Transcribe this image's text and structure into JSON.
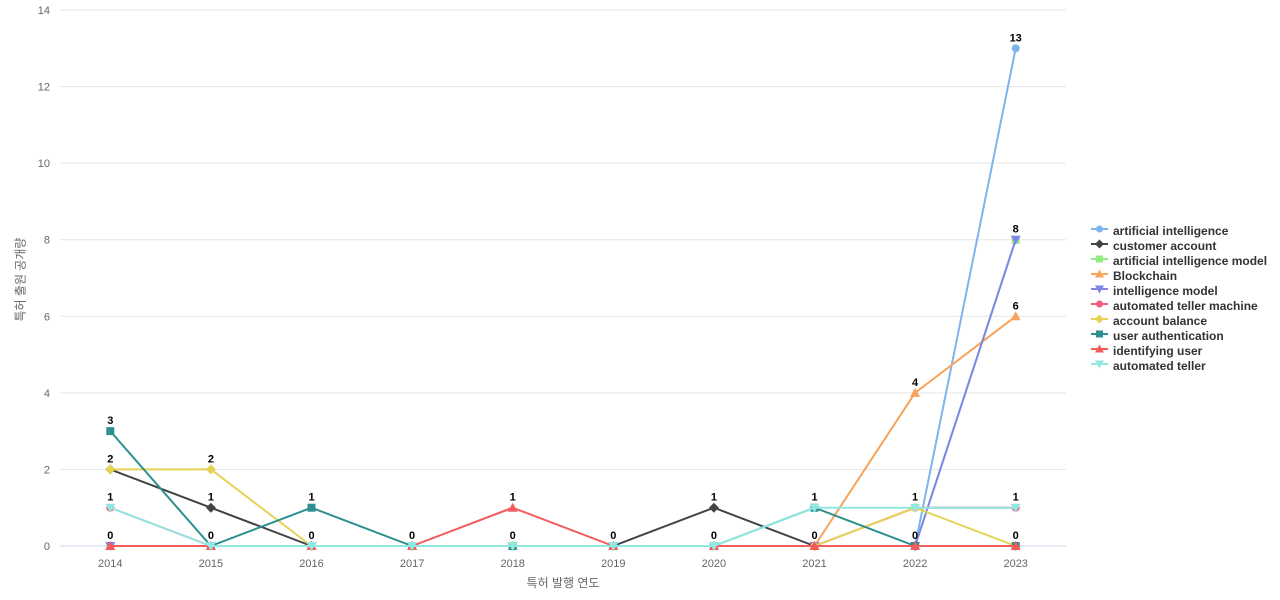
{
  "chart_data": {
    "type": "line",
    "title": "",
    "xlabel": "특허 발행 연도",
    "ylabel": "특허 출원 공개량",
    "categories": [
      "2014",
      "2015",
      "2016",
      "2017",
      "2018",
      "2019",
      "2020",
      "2021",
      "2022",
      "2023"
    ],
    "ylim": [
      0,
      14
    ],
    "yticks": [
      0,
      2,
      4,
      6,
      8,
      10,
      12,
      14
    ],
    "grid": "horizontal-only",
    "legend_position": "right-middle",
    "data_labels": "shown, bold, overlaps hidden",
    "series": [
      {
        "name": "artificial intelligence",
        "color": "#7cb5ec",
        "marker": "circle",
        "values": [
          0,
          0,
          0,
          0,
          0,
          0,
          0,
          0,
          0,
          13
        ]
      },
      {
        "name": "customer account",
        "color": "#434348",
        "marker": "diamond",
        "values": [
          2,
          1,
          0,
          0,
          0,
          0,
          1,
          0,
          0,
          0
        ]
      },
      {
        "name": "artificial intelligence model",
        "color": "#90ed7d",
        "marker": "square",
        "values": [
          0,
          0,
          0,
          0,
          0,
          0,
          0,
          0,
          0,
          8
        ]
      },
      {
        "name": "Blockchain",
        "color": "#f7a35c",
        "marker": "triangle",
        "values": [
          0,
          0,
          0,
          0,
          0,
          0,
          0,
          0,
          4,
          6
        ]
      },
      {
        "name": "intelligence model",
        "color": "#8085e9",
        "marker": "triangle-down",
        "values": [
          0,
          0,
          0,
          0,
          0,
          0,
          0,
          0,
          0,
          8
        ]
      },
      {
        "name": "automated teller machine",
        "color": "#f15c80",
        "marker": "circle",
        "values": [
          1,
          0,
          0,
          0,
          0,
          0,
          0,
          0,
          1,
          1
        ]
      },
      {
        "name": "account balance",
        "color": "#e4d354",
        "marker": "diamond",
        "values": [
          2,
          2,
          0,
          0,
          0,
          0,
          0,
          0,
          1,
          0
        ]
      },
      {
        "name": "user authentication",
        "color": "#2b908f",
        "marker": "square",
        "values": [
          3,
          0,
          1,
          0,
          0,
          0,
          0,
          1,
          0,
          0
        ]
      },
      {
        "name": "identifying user",
        "color": "#f45b5b",
        "marker": "triangle",
        "values": [
          0,
          0,
          0,
          0,
          1,
          0,
          0,
          0,
          0,
          0
        ]
      },
      {
        "name": "automated teller",
        "color": "#91e8e1",
        "marker": "triangle-down",
        "values": [
          1,
          0,
          0,
          0,
          0,
          0,
          0,
          1,
          1,
          1
        ]
      }
    ],
    "style": {
      "grid_color": "#e6e6e6",
      "axis_line_color": "#ccd6eb",
      "tick_label_color": "#666666",
      "axis_title_color": "#666666",
      "legend_text_color": "#333333",
      "data_label_color": "#000000",
      "background": "#ffffff"
    }
  }
}
